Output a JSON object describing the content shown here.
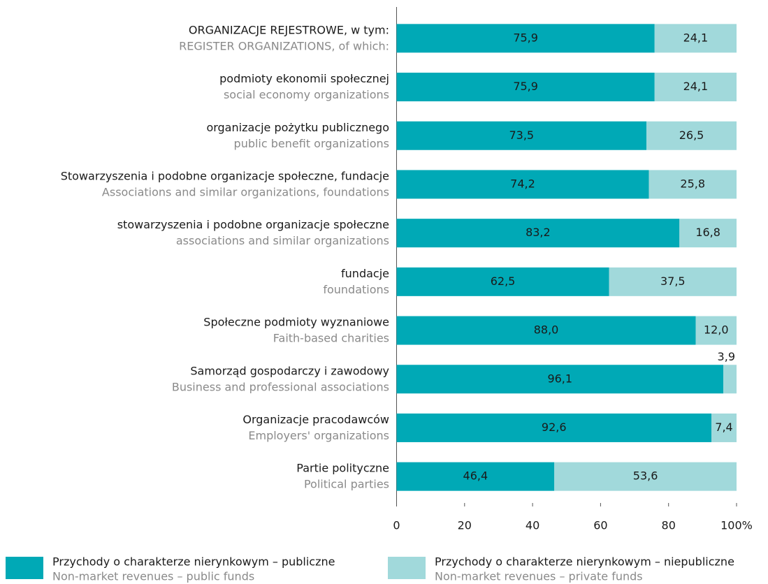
{
  "chart_data": {
    "type": "stacked-barh",
    "categories": [
      [
        "ORGANIZACJE REJESTROWE, w tym:",
        "REGISTER ORGANIZATIONS, of which:"
      ],
      [
        "podmioty ekonomii społecznej",
        "social economy organizations"
      ],
      [
        "organizacje pożytku publicznego",
        "public benefit organizations"
      ],
      [
        "Stowarzyszenia i podobne organizacje społeczne, fundacje",
        "Associations and similar organizations, foundations"
      ],
      [
        "stowarzyszenia i podobne organizacje społeczne",
        "associations and similar organizations"
      ],
      [
        "fundacje",
        "foundations"
      ],
      [
        "Społeczne podmioty wyznaniowe",
        "Faith-based charities"
      ],
      [
        "Samorząd gospodarczy i zawodowy",
        "Business and professional associations"
      ],
      [
        "Organizacje pracodawców",
        "Employers' organizations"
      ],
      [
        "Partie polityczne",
        "Political parties"
      ]
    ],
    "series": [
      {
        "name": [
          "Przychody o charakterze nierynkowym – publiczne",
          "Non-market revenues – public funds"
        ],
        "color": "#00a9b6",
        "values": [
          75.9,
          75.9,
          73.5,
          74.2,
          83.2,
          62.5,
          88.0,
          96.1,
          92.6,
          46.4
        ],
        "value_labels": [
          "75,9",
          "75,9",
          "73,5",
          "74,2",
          "83,2",
          "62,5",
          "88,0",
          "96,1",
          "92,6",
          "46,4"
        ]
      },
      {
        "name": [
          "Przychody o charakterze nierynkowym – niepubliczne",
          "Non-market revenues – private funds"
        ],
        "color": "#a1d9db",
        "values": [
          24.1,
          24.1,
          26.5,
          25.8,
          16.8,
          37.5,
          12.0,
          3.9,
          7.4,
          53.6
        ],
        "value_labels": [
          "24,1",
          "24,1",
          "26,5",
          "25,8",
          "16,8",
          "37,5",
          "12,0",
          "3,9",
          "7,4",
          "53,6"
        ]
      }
    ],
    "xlim": [
      0,
      100
    ],
    "xticks": [
      0,
      20,
      40,
      60,
      80,
      {
        "value": 100,
        "label": "100%"
      }
    ]
  }
}
